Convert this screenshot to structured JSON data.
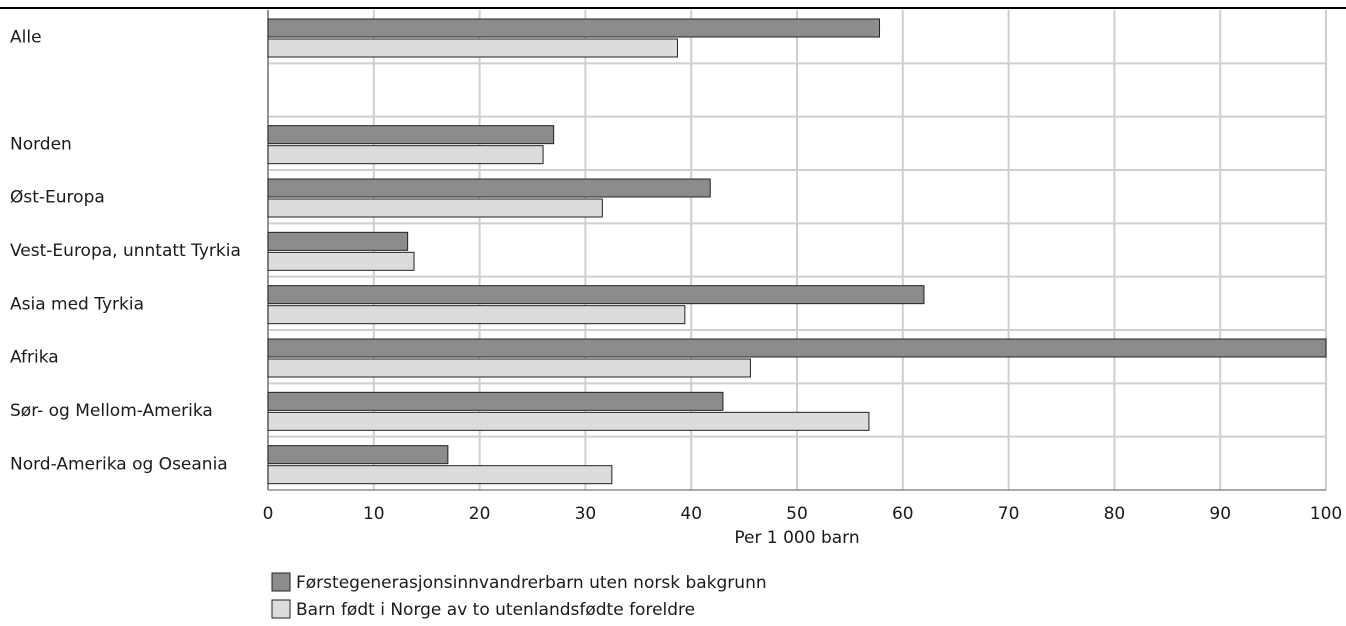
{
  "chart_data": {
    "type": "bar",
    "orientation": "horizontal",
    "categories": [
      "Alle",
      "",
      "Norden",
      "Øst-Europa",
      "Vest-Europa, unntatt Tyrkia",
      "Asia med Tyrkia",
      "Afrika",
      "Sør- og Mellom-Amerika",
      "Nord-Amerika og Oseania"
    ],
    "series": [
      {
        "name": "Førstegenerasjonsinnvandrerbarn uten norsk bakgrunn",
        "color": "#8c8c8c",
        "values": [
          57.8,
          null,
          27.0,
          41.8,
          13.2,
          62.0,
          100.0,
          43.0,
          17.0
        ]
      },
      {
        "name": "Barn født i Norge av to utenlandsfødte foreldre",
        "color": "#dcdcdc",
        "values": [
          38.7,
          null,
          26.0,
          31.6,
          13.8,
          39.4,
          45.6,
          56.8,
          32.5
        ]
      }
    ],
    "xlabel": "Per 1 000 barn",
    "ylabel": "",
    "xlim": [
      0,
      100
    ],
    "xticks": [
      0,
      10,
      20,
      30,
      40,
      50,
      60,
      70,
      80,
      90,
      100
    ],
    "grid": true,
    "legend_position": "bottom"
  }
}
